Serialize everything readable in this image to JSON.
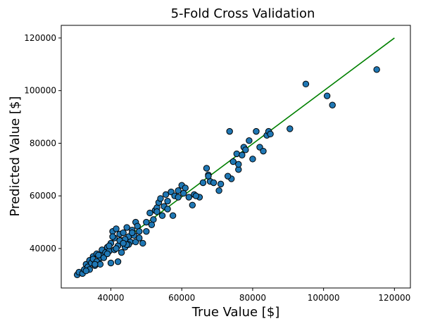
{
  "chart_data": {
    "type": "scatter",
    "title": "5-Fold Cross Validation",
    "xlabel": "True Value [$]",
    "ylabel": "Predicted Value [$]",
    "xlim": [
      26000,
      124500
    ],
    "ylim": [
      25000,
      124800
    ],
    "xticks": [
      40000,
      60000,
      80000,
      100000,
      120000
    ],
    "yticks": [
      40000,
      60000,
      80000,
      100000,
      120000
    ],
    "grid": false,
    "colors": {
      "points": "#1f77b4",
      "point_edge": "#000000",
      "reference_line": "#008000"
    },
    "reference_line": {
      "x": [
        30500,
        120000
      ],
      "y": [
        30000,
        120000
      ]
    },
    "points": [
      [
        30500,
        30000
      ],
      [
        31000,
        31000
      ],
      [
        32000,
        30500
      ],
      [
        32500,
        32000
      ],
      [
        33000,
        34000
      ],
      [
        33500,
        33000
      ],
      [
        34000,
        35500
      ],
      [
        34500,
        34500
      ],
      [
        35000,
        37000
      ],
      [
        35000,
        36000
      ],
      [
        35500,
        33500
      ],
      [
        36000,
        38000
      ],
      [
        36500,
        35000
      ],
      [
        37000,
        36500
      ],
      [
        37500,
        39500
      ],
      [
        38000,
        37500
      ],
      [
        38500,
        38500
      ],
      [
        39000,
        40500
      ],
      [
        39500,
        39000
      ],
      [
        40000,
        42000
      ],
      [
        40500,
        46500
      ],
      [
        41000,
        44000
      ],
      [
        41500,
        47500
      ],
      [
        42000,
        41000
      ],
      [
        42500,
        45500
      ],
      [
        43000,
        43000
      ],
      [
        43500,
        46000
      ],
      [
        44000,
        40500
      ],
      [
        44500,
        48000
      ],
      [
        45000,
        44500
      ],
      [
        45500,
        42500
      ],
      [
        46000,
        47000
      ],
      [
        46500,
        45000
      ],
      [
        47000,
        50000
      ],
      [
        47500,
        48500
      ],
      [
        48000,
        46500
      ],
      [
        49000,
        42000
      ],
      [
        50000,
        50000
      ],
      [
        51000,
        53500
      ],
      [
        52000,
        51000
      ],
      [
        52500,
        54500
      ],
      [
        53000,
        55500
      ],
      [
        53500,
        57500
      ],
      [
        54000,
        59000
      ],
      [
        55000,
        56000
      ],
      [
        55500,
        60500
      ],
      [
        56000,
        58000
      ],
      [
        57000,
        61500
      ],
      [
        58000,
        60000
      ],
      [
        59000,
        62000
      ],
      [
        60000,
        64000
      ],
      [
        61000,
        63000
      ],
      [
        62000,
        59500
      ],
      [
        63000,
        56500
      ],
      [
        63500,
        60500
      ],
      [
        65000,
        59500
      ],
      [
        66000,
        65000
      ],
      [
        67000,
        70500
      ],
      [
        67500,
        68000
      ],
      [
        68000,
        65500
      ],
      [
        69000,
        65000
      ],
      [
        70500,
        62000
      ],
      [
        71000,
        64500
      ],
      [
        73500,
        84500
      ],
      [
        74000,
        66500
      ],
      [
        74500,
        73000
      ],
      [
        75500,
        76000
      ],
      [
        76000,
        70000
      ],
      [
        77000,
        75500
      ],
      [
        77500,
        78500
      ],
      [
        78000,
        77500
      ],
      [
        79000,
        81000
      ],
      [
        80000,
        74000
      ],
      [
        81000,
        84500
      ],
      [
        82000,
        78500
      ],
      [
        83000,
        77000
      ],
      [
        84000,
        83000
      ],
      [
        84500,
        84500
      ],
      [
        85000,
        83500
      ],
      [
        90500,
        85500
      ],
      [
        95000,
        102500
      ],
      [
        101000,
        98000
      ],
      [
        102500,
        94500
      ],
      [
        115000,
        108000
      ],
      [
        36000,
        35000
      ],
      [
        37000,
        34000
      ],
      [
        38000,
        36500
      ],
      [
        39000,
        38000
      ],
      [
        40000,
        34500
      ],
      [
        41000,
        39500
      ],
      [
        42000,
        35000
      ],
      [
        43000,
        38500
      ],
      [
        44000,
        43500
      ],
      [
        45000,
        41500
      ],
      [
        46000,
        46000
      ],
      [
        47000,
        42500
      ],
      [
        48000,
        44000
      ],
      [
        50000,
        46500
      ],
      [
        51500,
        49000
      ],
      [
        53000,
        54000
      ],
      [
        54500,
        52500
      ],
      [
        56000,
        55000
      ],
      [
        57500,
        52500
      ],
      [
        59000,
        59500
      ],
      [
        60500,
        61000
      ],
      [
        64000,
        60000
      ],
      [
        67500,
        67500
      ],
      [
        76000,
        72000
      ],
      [
        73000,
        67500
      ],
      [
        34000,
        32000
      ],
      [
        33000,
        31500
      ],
      [
        35500,
        34000
      ],
      [
        36500,
        37500
      ],
      [
        41500,
        40000
      ],
      [
        42500,
        43000
      ],
      [
        44500,
        41500
      ],
      [
        40500,
        44500
      ],
      [
        39500,
        41000
      ],
      [
        43500,
        42000
      ]
    ]
  }
}
